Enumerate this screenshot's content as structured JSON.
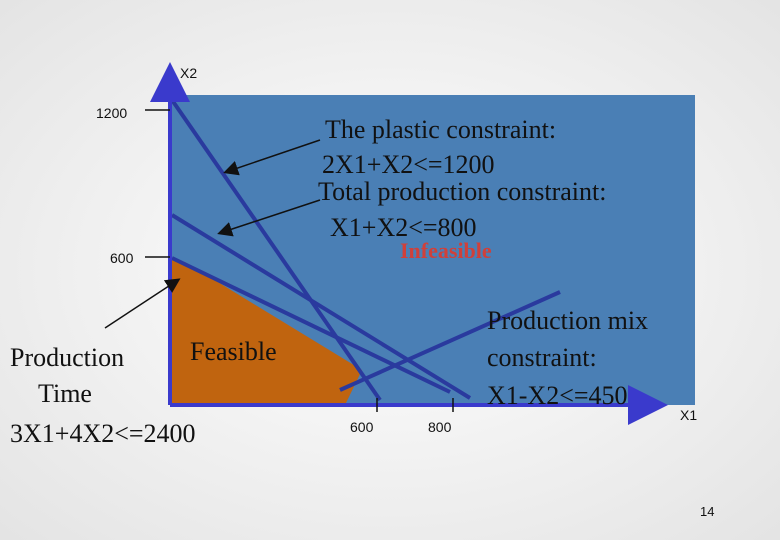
{
  "axes": {
    "y_label": "X2",
    "y_ticks": [
      "1200",
      "600"
    ],
    "x_label": "X1",
    "x_ticks": [
      "600",
      "800"
    ]
  },
  "annotations": {
    "plastic": [
      "The plastic constraint:",
      "2X1+X2<=1200"
    ],
    "total": [
      "Total production constraint:",
      "X1+X2<=800"
    ],
    "infeasible": "Infeasible",
    "feasible": "Feasible",
    "production_time": [
      "Production",
      "Time",
      "3X1+4X2<=2400"
    ],
    "production_mix": [
      "Production mix",
      "constraint:",
      "X1-X2<=450"
    ]
  },
  "page_number": "14"
}
